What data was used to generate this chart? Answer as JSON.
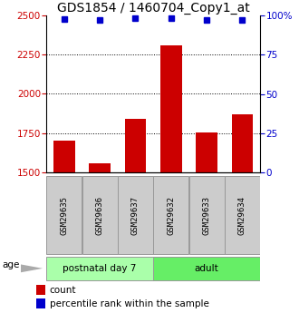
{
  "title": "GDS1854 / 1460704_Copy1_at",
  "samples": [
    "GSM29635",
    "GSM29636",
    "GSM29637",
    "GSM29632",
    "GSM29633",
    "GSM29634"
  ],
  "count_values": [
    1700,
    1555,
    1840,
    2310,
    1755,
    1870
  ],
  "percentile_values": [
    98,
    97,
    98.5,
    98.5,
    97,
    97
  ],
  "ylim_left": [
    1500,
    2500
  ],
  "ylim_right": [
    0,
    100
  ],
  "yticks_left": [
    1500,
    1750,
    2000,
    2250,
    2500
  ],
  "yticks_right": [
    0,
    25,
    50,
    75,
    100
  ],
  "ytick_labels_right": [
    "0",
    "25",
    "50",
    "75",
    "100%"
  ],
  "grid_values": [
    1750,
    2000,
    2250
  ],
  "groups": [
    {
      "label": "postnatal day 7",
      "indices": [
        0,
        1,
        2
      ],
      "color": "#aaffaa"
    },
    {
      "label": "adult",
      "indices": [
        3,
        4,
        5
      ],
      "color": "#66ee66"
    }
  ],
  "bar_color": "#cc0000",
  "dot_color": "#0000cc",
  "bar_width": 0.6,
  "age_label": "age",
  "legend_count_label": "count",
  "legend_percentile_label": "percentile rank within the sample",
  "title_fontsize": 10,
  "axis_label_color_left": "#cc0000",
  "axis_label_color_right": "#0000cc"
}
